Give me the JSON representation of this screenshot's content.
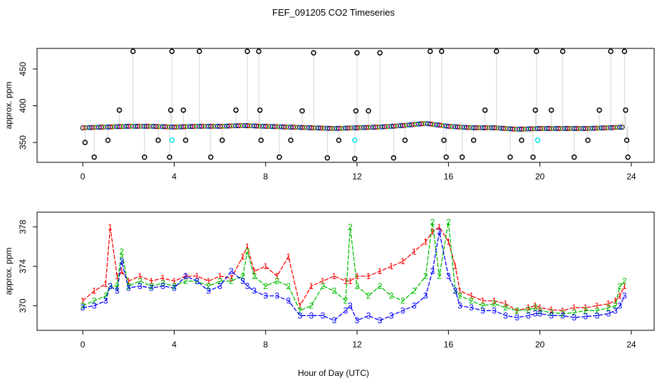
{
  "chart_data": [
    {
      "type": "scatter",
      "title": "FEF_091205  CO2 Timeseries",
      "xlabel": "",
      "ylabel": "approx. ppm",
      "xlim": [
        -2,
        25
      ],
      "ylim": [
        323,
        478
      ],
      "xticks": [
        "0",
        "4",
        "8",
        "12",
        "16",
        "20",
        "24"
      ],
      "yticks": [
        "350",
        "400",
        "450"
      ],
      "series_colors": {
        "black": "#000000",
        "red": "#ff0000",
        "green": "#00c000",
        "blue": "#0000ff",
        "cyan": "#00e5ee",
        "grey": "#aaaaaa"
      },
      "baseline_x": [
        0,
        1,
        2,
        3,
        4,
        5,
        6,
        7,
        8,
        9,
        10,
        11,
        12,
        13,
        14,
        15,
        16,
        17,
        18,
        19,
        20,
        21,
        22,
        23,
        23.7
      ],
      "baseline_values": [
        370,
        371,
        372,
        372,
        371,
        372,
        372,
        373,
        372,
        371,
        370,
        369,
        370,
        371,
        373,
        376,
        372,
        370,
        370,
        368,
        369,
        369,
        369,
        370,
        371
      ],
      "outliers_x": [
        0.1,
        0.5,
        1.1,
        1.6,
        2.2,
        2.7,
        3.3,
        3.8,
        3.85,
        3.9,
        4.4,
        4.5,
        5.1,
        5.6,
        6.1,
        6.7,
        7.2,
        7.7,
        7.75,
        7.8,
        8.6,
        9.1,
        9.6,
        10.1,
        10.7,
        11.2,
        11.9,
        11.95,
        12.0,
        12.5,
        13.0,
        13.6,
        14.1,
        15.2,
        15.7,
        15.8,
        15.9,
        16.6,
        17.1,
        17.6,
        18.1,
        18.7,
        19.2,
        19.7,
        19.8,
        19.85,
        20.5,
        21.0,
        21.5,
        22.1,
        22.6,
        23.1,
        23.7,
        23.75,
        23.8,
        23.85
      ],
      "outliers_values": [
        350,
        330,
        353,
        394,
        474,
        330,
        353,
        330,
        394,
        474,
        394,
        353,
        474,
        330,
        353,
        394,
        474,
        474,
        394,
        353,
        330,
        353,
        393,
        472,
        329,
        353,
        328,
        393,
        472,
        393,
        472,
        329,
        353,
        474,
        474,
        353,
        330,
        330,
        353,
        394,
        474,
        330,
        353,
        330,
        394,
        474,
        394,
        474,
        330,
        353,
        394,
        474,
        474,
        394,
        353,
        330
      ],
      "cyan_x": [
        3.9,
        11.9,
        19.9
      ],
      "cyan_values": [
        353,
        353,
        353
      ]
    },
    {
      "type": "line",
      "title": "",
      "xlabel": "Hour of Day (UTC)",
      "ylabel": "approx. ppm",
      "xlim": [
        -2,
        25
      ],
      "ylim": [
        367.5,
        379.5
      ],
      "xticks": [
        "0",
        "4",
        "8",
        "12",
        "16",
        "20",
        "24"
      ],
      "yticks": [
        "370",
        "374",
        "378"
      ],
      "x": [
        0,
        0.5,
        1.0,
        1.2,
        1.5,
        1.7,
        2.0,
        2.5,
        3.0,
        3.5,
        4.0,
        4.5,
        5.0,
        5.5,
        6.0,
        6.5,
        7.0,
        7.2,
        7.5,
        8.0,
        8.5,
        9.0,
        9.5,
        10.0,
        10.5,
        11.0,
        11.5,
        11.7,
        12.0,
        12.5,
        13.0,
        13.5,
        14.0,
        14.5,
        15.0,
        15.3,
        15.6,
        16.0,
        16.3,
        16.5,
        17.0,
        17.5,
        18.0,
        18.5,
        19.0,
        19.5,
        19.8,
        20.0,
        20.5,
        21.0,
        21.5,
        22.0,
        22.5,
        23.0,
        23.3,
        23.5,
        23.7
      ],
      "series": [
        {
          "name": "1",
          "color": "#ff0000",
          "marker": "1",
          "values": [
            370.5,
            371.5,
            372.2,
            378.0,
            373.0,
            373.5,
            372.5,
            373.0,
            372.5,
            372.8,
            372.5,
            373.0,
            373.0,
            372.5,
            373.0,
            372.8,
            375.0,
            376.0,
            373.5,
            374.0,
            373.0,
            375.0,
            370.0,
            372.0,
            372.5,
            373.0,
            372.5,
            372.5,
            373.0,
            373.0,
            373.5,
            374.0,
            374.5,
            375.5,
            376.5,
            377.5,
            378.0,
            376.5,
            374.0,
            371.5,
            371.0,
            370.5,
            370.5,
            370.2,
            369.5,
            369.8,
            370.0,
            369.8,
            369.6,
            369.5,
            369.8,
            369.8,
            370.0,
            370.2,
            370.5,
            371.0,
            372.0
          ]
        },
        {
          "name": "2",
          "color": "#00c000",
          "marker": "2",
          "values": [
            370.0,
            370.5,
            371.0,
            372.0,
            372.0,
            375.5,
            372.0,
            372.5,
            372.0,
            372.3,
            372.0,
            372.5,
            372.5,
            372.0,
            372.5,
            372.5,
            373.0,
            375.5,
            373.0,
            372.0,
            372.5,
            372.0,
            369.5,
            370.0,
            372.0,
            371.5,
            370.5,
            378.0,
            372.0,
            371.0,
            372.0,
            371.0,
            370.5,
            371.5,
            373.0,
            378.5,
            373.0,
            378.5,
            371.5,
            371.0,
            370.5,
            370.0,
            370.2,
            369.8,
            369.5,
            369.6,
            369.8,
            369.5,
            369.3,
            369.2,
            369.3,
            369.5,
            369.5,
            369.8,
            370.0,
            372.0,
            372.5
          ]
        },
        {
          "name": "3",
          "color": "#0000ff",
          "marker": "3",
          "values": [
            369.8,
            370.0,
            370.5,
            372.0,
            371.5,
            374.5,
            371.8,
            372.0,
            371.8,
            372.0,
            371.8,
            373.0,
            372.5,
            371.5,
            372.0,
            373.5,
            372.5,
            372.0,
            371.5,
            371.0,
            371.0,
            370.5,
            369.0,
            369.0,
            369.0,
            368.5,
            369.5,
            370.0,
            368.5,
            369.0,
            368.5,
            369.0,
            369.5,
            370.0,
            371.0,
            373.5,
            377.5,
            373.0,
            371.5,
            370.0,
            369.8,
            369.5,
            369.5,
            369.0,
            368.8,
            369.0,
            369.2,
            369.2,
            369.0,
            369.0,
            368.8,
            368.9,
            369.0,
            369.2,
            369.5,
            370.0,
            371.0
          ]
        }
      ]
    }
  ]
}
